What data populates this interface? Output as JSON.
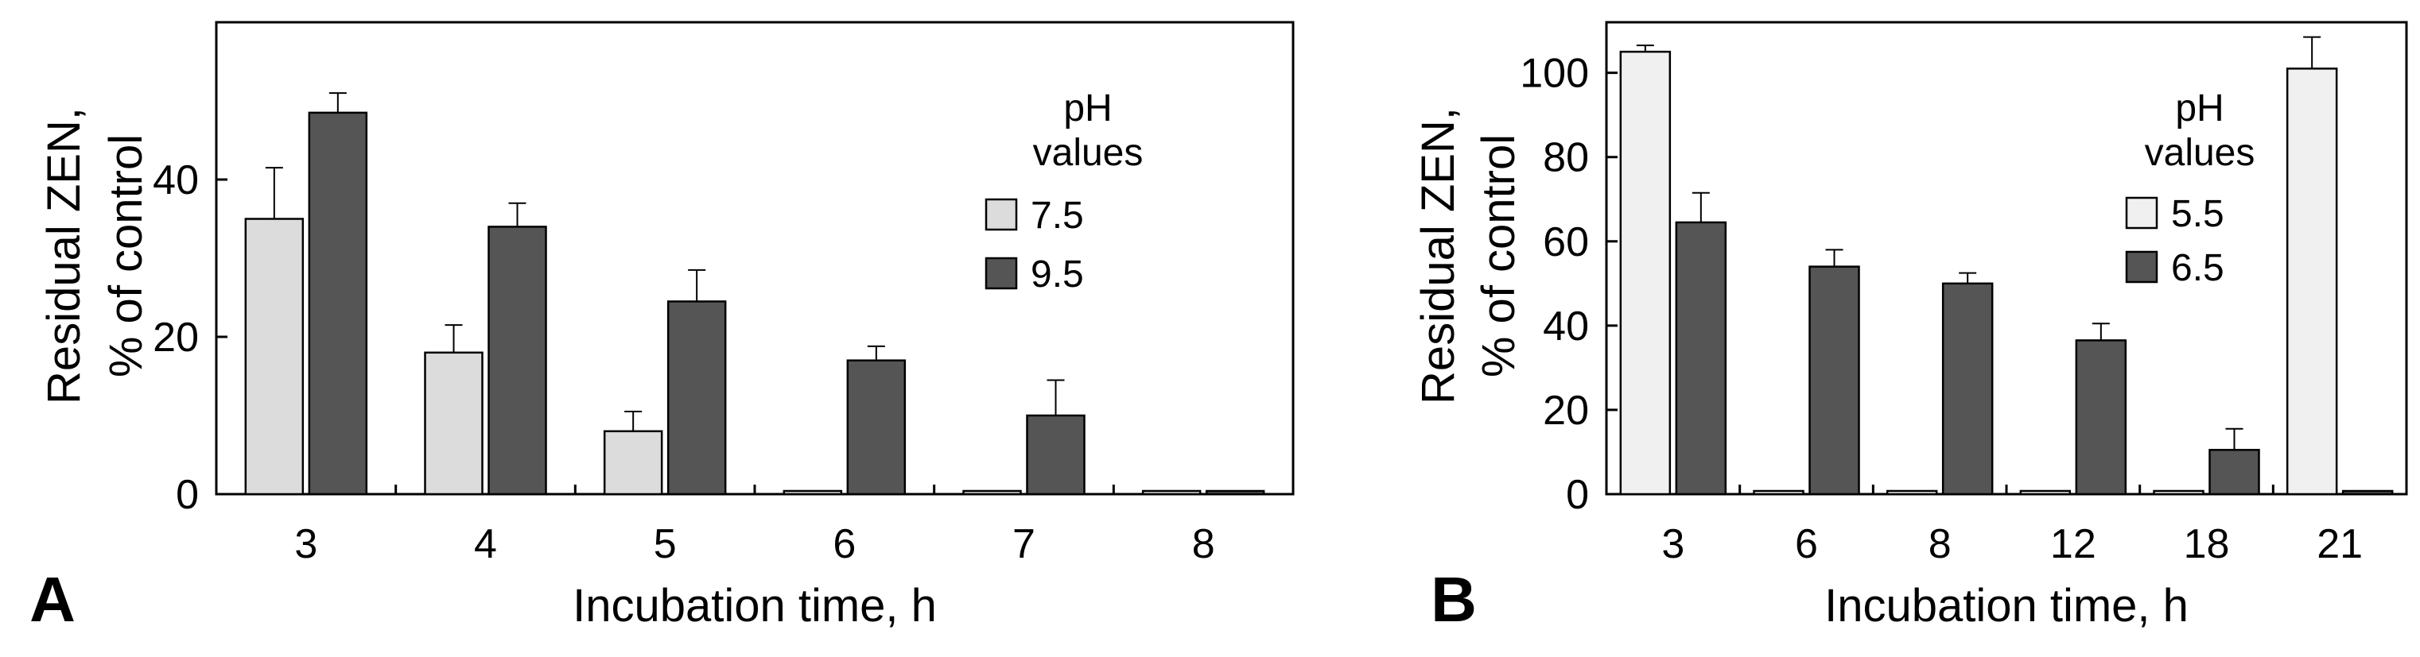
{
  "chart_data": [
    {
      "panel_label": "A",
      "type": "bar",
      "xlabel": "Incubation time, h",
      "ylabel": [
        "Residual ZEN,",
        "% of control"
      ],
      "categories": [
        "3",
        "4",
        "5",
        "6",
        "7",
        "8"
      ],
      "ylim": [
        0,
        60
      ],
      "yticks": [
        0,
        20,
        40
      ],
      "legend": {
        "title": [
          "pH",
          "values"
        ],
        "position": "top-right"
      },
      "series": [
        {
          "name": "7.5",
          "color": "#dcdcdc",
          "values": [
            35,
            18,
            8,
            0,
            0,
            0
          ],
          "errors": [
            6.5,
            3.5,
            2.5,
            0,
            0,
            0
          ]
        },
        {
          "name": "9.5",
          "color": "#555555",
          "values": [
            48.5,
            34,
            24.5,
            17,
            10,
            0
          ],
          "errors": [
            2.5,
            3,
            4,
            1.8,
            4.5,
            0
          ]
        }
      ]
    },
    {
      "panel_label": "B",
      "type": "bar",
      "xlabel": "Incubation time, h",
      "ylabel": [
        "Residual ZEN,",
        "% of control"
      ],
      "categories": [
        "3",
        "6",
        "8",
        "12",
        "18",
        "21"
      ],
      "ylim": [
        0,
        112
      ],
      "yticks": [
        0,
        20,
        40,
        60,
        80,
        100
      ],
      "legend": {
        "title": [
          "pH",
          "values"
        ],
        "position": "top-right"
      },
      "series": [
        {
          "name": "5.5",
          "color": "#f0f0f0",
          "values": [
            105,
            0,
            0,
            0,
            0,
            101
          ],
          "errors": [
            1.5,
            0,
            0,
            0,
            0,
            7.5
          ]
        },
        {
          "name": "6.5",
          "color": "#555555",
          "values": [
            64.5,
            54,
            50,
            36.5,
            10.5,
            0
          ],
          "errors": [
            7,
            4,
            2.5,
            4,
            5,
            0
          ]
        }
      ]
    }
  ]
}
